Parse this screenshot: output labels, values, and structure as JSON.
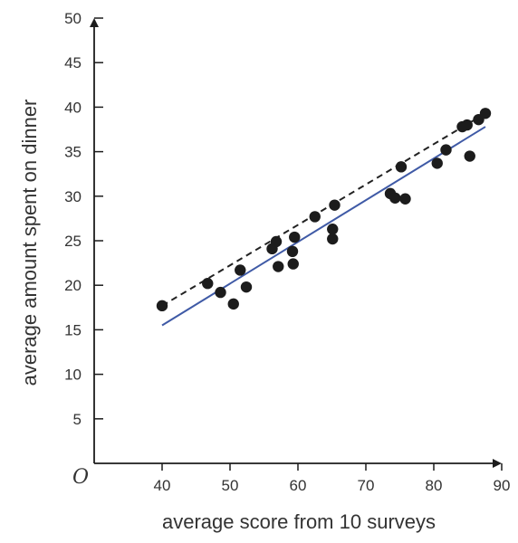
{
  "chart_data": {
    "type": "scatter",
    "title": "",
    "xlabel": "average score from 10 surveys",
    "ylabel": "average amount spent on dinner",
    "origin_label": "O",
    "xlim": [
      30,
      90
    ],
    "ylim": [
      0,
      50
    ],
    "x_ticks": [
      40,
      50,
      60,
      70,
      80,
      90
    ],
    "y_ticks": [
      5,
      10,
      15,
      20,
      25,
      30,
      35,
      40,
      45,
      50
    ],
    "grid": false,
    "points": [
      {
        "x": 40,
        "y": 17.7
      },
      {
        "x": 46.7,
        "y": 20.2
      },
      {
        "x": 48.6,
        "y": 19.2
      },
      {
        "x": 50.5,
        "y": 17.9
      },
      {
        "x": 51.5,
        "y": 21.7
      },
      {
        "x": 52.4,
        "y": 19.8
      },
      {
        "x": 56.2,
        "y": 24.1
      },
      {
        "x": 56.8,
        "y": 24.9
      },
      {
        "x": 57.1,
        "y": 22.1
      },
      {
        "x": 59.2,
        "y": 23.8
      },
      {
        "x": 59.3,
        "y": 22.4
      },
      {
        "x": 59.5,
        "y": 25.4
      },
      {
        "x": 62.5,
        "y": 27.7
      },
      {
        "x": 65.1,
        "y": 26.3
      },
      {
        "x": 65.1,
        "y": 25.2
      },
      {
        "x": 65.4,
        "y": 29
      },
      {
        "x": 73.6,
        "y": 30.3
      },
      {
        "x": 74.3,
        "y": 29.8
      },
      {
        "x": 75.2,
        "y": 33.3
      },
      {
        "x": 75.8,
        "y": 29.7
      },
      {
        "x": 80.5,
        "y": 33.7
      },
      {
        "x": 81.8,
        "y": 35.2
      },
      {
        "x": 84.2,
        "y": 37.8
      },
      {
        "x": 84.9,
        "y": 38
      },
      {
        "x": 85.3,
        "y": 34.5
      },
      {
        "x": 86.6,
        "y": 38.6
      },
      {
        "x": 87.6,
        "y": 39.3
      }
    ],
    "lines": [
      {
        "style": "dashed",
        "color": "#222222",
        "from": [
          40,
          17.7
        ],
        "to": [
          87.6,
          39.3
        ]
      },
      {
        "style": "solid",
        "color": "#3f5aa6",
        "from": [
          40,
          15.5
        ],
        "to": [
          87.6,
          37.8
        ]
      }
    ],
    "colors": {
      "points": "#1c1c1c",
      "axes": "#1c1c1c",
      "fit_line": "#3f5aa6"
    }
  }
}
